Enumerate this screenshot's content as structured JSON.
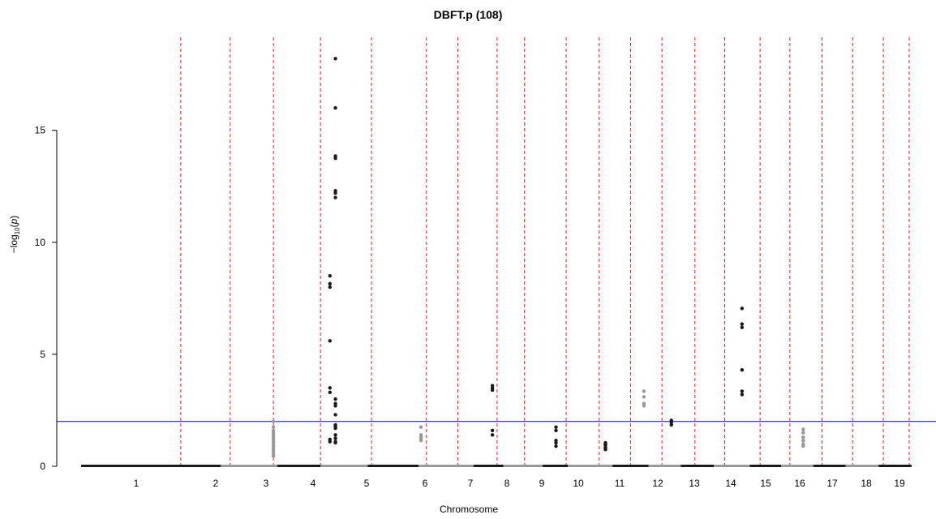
{
  "chart_data": {
    "type": "scatter",
    "title": "DBFT.p (108)",
    "xlabel": "Chromosome",
    "ylabel": "-log10(p)",
    "ylabel_parts": {
      "prefix": "−log",
      "sub": "10",
      "open": "(",
      "italic": "p",
      "close": ")"
    },
    "ylim": [
      0,
      18.5
    ],
    "yticks": [
      "0",
      "5",
      "10",
      "15"
    ],
    "threshold": 2,
    "colors": {
      "dark": "#1a1a1a",
      "light": "#999999",
      "boundary": "#ff0000",
      "threshold": "#0000ff"
    },
    "chromosomes": [
      {
        "label": "1",
        "start": 0,
        "end": 1.78
      },
      {
        "label": "2",
        "start": 1.78,
        "end": 2.5
      },
      {
        "label": "3",
        "start": 2.5,
        "end": 3.05
      },
      {
        "label": "4",
        "start": 3.05,
        "end": 3.65
      },
      {
        "label": "5",
        "start": 3.65,
        "end": 4.3
      },
      {
        "label": "6",
        "start": 4.3,
        "end": 5.0
      },
      {
        "label": "7",
        "start": 5.0,
        "end": 5.38
      },
      {
        "label": "8",
        "start": 5.38,
        "end": 5.88
      },
      {
        "label": "9",
        "start": 5.88,
        "end": 6.2
      },
      {
        "label": "10",
        "start": 6.2,
        "end": 6.77
      },
      {
        "label": "11",
        "start": 6.77,
        "end": 7.23
      },
      {
        "label": "12",
        "start": 7.23,
        "end": 7.64
      },
      {
        "label": "13",
        "start": 7.64,
        "end": 8.06
      },
      {
        "label": "14",
        "start": 8.06,
        "end": 8.52
      },
      {
        "label": "15",
        "start": 8.52,
        "end": 8.92
      },
      {
        "label": "16",
        "start": 8.92,
        "end": 9.33
      },
      {
        "label": "17",
        "start": 9.33,
        "end": 9.74
      },
      {
        "label": "18",
        "start": 9.74,
        "end": 10.16
      },
      {
        "label": "19",
        "start": 10.16,
        "end": 10.58
      }
    ],
    "boundaries": [
      1.27,
      1.9,
      2.45,
      3.05,
      3.7,
      4.4,
      4.8,
      5.3,
      5.65,
      6.18,
      6.6,
      7.0,
      7.4,
      7.82,
      8.2,
      8.65,
      9.03,
      9.44,
      9.83,
      10.22,
      10.55
    ],
    "points": [
      {
        "x": 2.45,
        "y": 2.0,
        "c": "light"
      },
      {
        "x": 2.45,
        "y": 1.75,
        "c": "light"
      },
      {
        "x": 2.45,
        "y": 1.6,
        "c": "light"
      },
      {
        "x": 2.45,
        "y": 1.5,
        "c": "light"
      },
      {
        "x": 2.45,
        "y": 1.4,
        "c": "light"
      },
      {
        "x": 2.45,
        "y": 1.3,
        "c": "light"
      },
      {
        "x": 2.45,
        "y": 1.2,
        "c": "light"
      },
      {
        "x": 2.45,
        "y": 1.1,
        "c": "light"
      },
      {
        "x": 2.45,
        "y": 1.0,
        "c": "light"
      },
      {
        "x": 2.45,
        "y": 0.9,
        "c": "light"
      },
      {
        "x": 2.45,
        "y": 0.8,
        "c": "light"
      },
      {
        "x": 2.45,
        "y": 0.7,
        "c": "light"
      },
      {
        "x": 2.45,
        "y": 0.6,
        "c": "light"
      },
      {
        "x": 2.45,
        "y": 0.5,
        "c": "light"
      },
      {
        "x": 2.45,
        "y": 0.45,
        "c": "light"
      },
      {
        "x": 3.17,
        "y": 8.5,
        "c": "dark"
      },
      {
        "x": 3.17,
        "y": 8.15,
        "c": "dark"
      },
      {
        "x": 3.17,
        "y": 8.0,
        "c": "dark"
      },
      {
        "x": 3.17,
        "y": 5.6,
        "c": "dark"
      },
      {
        "x": 3.17,
        "y": 3.5,
        "c": "dark"
      },
      {
        "x": 3.17,
        "y": 3.3,
        "c": "dark"
      },
      {
        "x": 3.17,
        "y": 1.2,
        "c": "dark"
      },
      {
        "x": 3.17,
        "y": 1.1,
        "c": "dark"
      },
      {
        "x": 3.24,
        "y": 18.2,
        "c": "dark"
      },
      {
        "x": 3.24,
        "y": 16.0,
        "c": "dark"
      },
      {
        "x": 3.24,
        "y": 13.85,
        "c": "dark"
      },
      {
        "x": 3.24,
        "y": 13.75,
        "c": "dark"
      },
      {
        "x": 3.24,
        "y": 12.3,
        "c": "dark"
      },
      {
        "x": 3.24,
        "y": 12.2,
        "c": "dark"
      },
      {
        "x": 3.24,
        "y": 12.0,
        "c": "dark"
      },
      {
        "x": 3.24,
        "y": 3.0,
        "c": "dark"
      },
      {
        "x": 3.24,
        "y": 2.8,
        "c": "dark"
      },
      {
        "x": 3.24,
        "y": 2.7,
        "c": "dark"
      },
      {
        "x": 3.24,
        "y": 2.3,
        "c": "dark"
      },
      {
        "x": 3.24,
        "y": 1.85,
        "c": "dark"
      },
      {
        "x": 3.24,
        "y": 1.75,
        "c": "dark"
      },
      {
        "x": 3.24,
        "y": 1.7,
        "c": "dark"
      },
      {
        "x": 3.24,
        "y": 1.4,
        "c": "dark"
      },
      {
        "x": 3.24,
        "y": 1.25,
        "c": "dark"
      },
      {
        "x": 3.24,
        "y": 1.1,
        "c": "dark"
      },
      {
        "x": 3.24,
        "y": 1.05,
        "c": "dark"
      },
      {
        "x": 4.33,
        "y": 1.75,
        "c": "light"
      },
      {
        "x": 4.33,
        "y": 1.4,
        "c": "light"
      },
      {
        "x": 4.33,
        "y": 1.3,
        "c": "light"
      },
      {
        "x": 4.33,
        "y": 1.2,
        "c": "light"
      },
      {
        "x": 4.33,
        "y": 1.15,
        "c": "light"
      },
      {
        "x": 5.24,
        "y": 3.6,
        "c": "dark"
      },
      {
        "x": 5.24,
        "y": 3.5,
        "c": "dark"
      },
      {
        "x": 5.24,
        "y": 3.4,
        "c": "dark"
      },
      {
        "x": 5.24,
        "y": 1.6,
        "c": "dark"
      },
      {
        "x": 5.24,
        "y": 1.4,
        "c": "dark"
      },
      {
        "x": 6.05,
        "y": 1.75,
        "c": "dark"
      },
      {
        "x": 6.05,
        "y": 1.6,
        "c": "dark"
      },
      {
        "x": 6.05,
        "y": 1.15,
        "c": "dark"
      },
      {
        "x": 6.05,
        "y": 1.05,
        "c": "dark"
      },
      {
        "x": 6.05,
        "y": 0.9,
        "c": "dark"
      },
      {
        "x": 6.68,
        "y": 1.05,
        "c": "dark"
      },
      {
        "x": 6.68,
        "y": 1.0,
        "c": "dark"
      },
      {
        "x": 6.68,
        "y": 0.95,
        "c": "dark"
      },
      {
        "x": 6.68,
        "y": 0.85,
        "c": "dark"
      },
      {
        "x": 6.68,
        "y": 0.8,
        "c": "dark"
      },
      {
        "x": 6.68,
        "y": 0.75,
        "c": "dark"
      },
      {
        "x": 7.17,
        "y": 3.35,
        "c": "light"
      },
      {
        "x": 7.17,
        "y": 3.1,
        "c": "light"
      },
      {
        "x": 7.17,
        "y": 2.8,
        "c": "light"
      },
      {
        "x": 7.17,
        "y": 2.7,
        "c": "light"
      },
      {
        "x": 7.52,
        "y": 2.05,
        "c": "dark"
      },
      {
        "x": 7.52,
        "y": 1.95,
        "c": "dark"
      },
      {
        "x": 7.52,
        "y": 1.85,
        "c": "dark"
      },
      {
        "x": 8.42,
        "y": 7.05,
        "c": "dark"
      },
      {
        "x": 8.42,
        "y": 6.35,
        "c": "dark"
      },
      {
        "x": 8.42,
        "y": 6.2,
        "c": "dark"
      },
      {
        "x": 8.42,
        "y": 4.3,
        "c": "dark"
      },
      {
        "x": 8.42,
        "y": 3.35,
        "c": "dark"
      },
      {
        "x": 8.42,
        "y": 3.2,
        "c": "dark"
      },
      {
        "x": 9.2,
        "y": 1.65,
        "c": "light"
      },
      {
        "x": 9.2,
        "y": 1.5,
        "c": "light"
      },
      {
        "x": 9.2,
        "y": 1.3,
        "c": "light"
      },
      {
        "x": 9.2,
        "y": 1.15,
        "c": "light"
      },
      {
        "x": 9.2,
        "y": 1.0,
        "c": "light"
      },
      {
        "x": 9.2,
        "y": 0.9,
        "c": "light"
      }
    ]
  }
}
